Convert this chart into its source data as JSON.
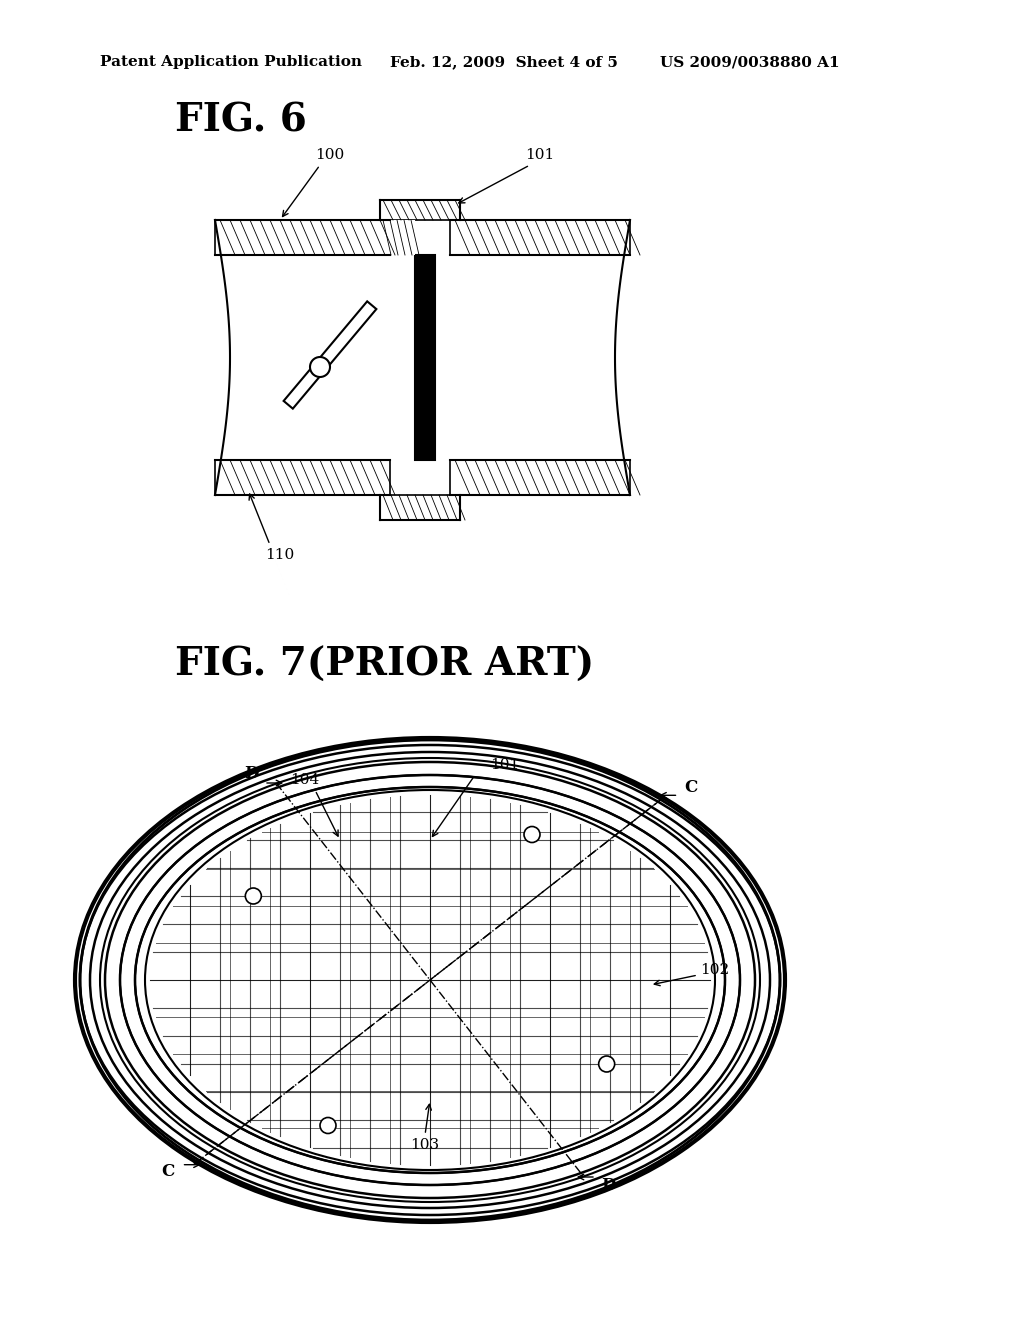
{
  "bg_color": "#ffffff",
  "header_text": "Patent Application Publication",
  "header_date": "Feb. 12, 2009  Sheet 4 of 5",
  "header_patent": "US 2009/0038880 A1",
  "fig6_label": "FIG. 6",
  "fig7_label": "FIG. 7(PRIOR ART)",
  "label_100": "100",
  "label_101": "101",
  "label_110": "110",
  "label_101b": "101",
  "label_102": "102",
  "label_103": "103",
  "label_104": "104",
  "label_C1": "C",
  "label_C2": "C",
  "label_D1": "D",
  "label_D2": "D"
}
